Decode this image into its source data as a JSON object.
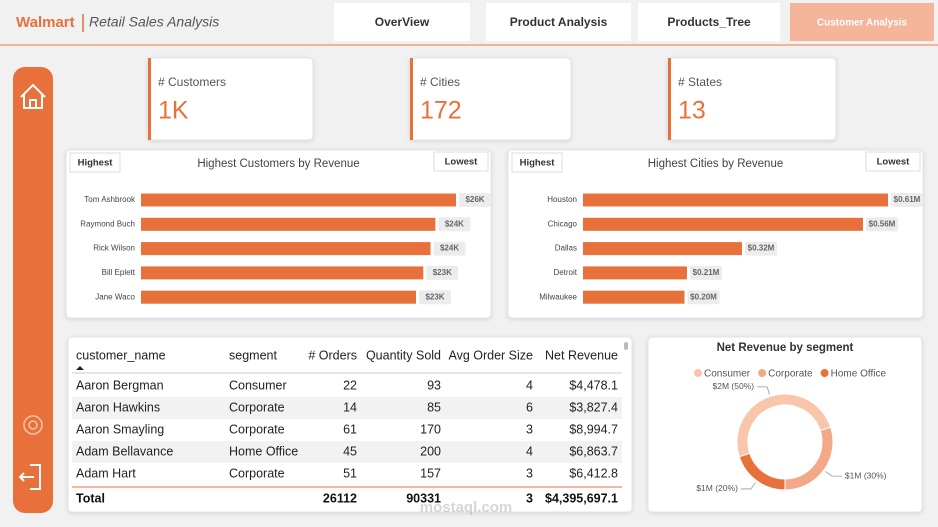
{
  "header": {
    "brand": "Walmart",
    "title": "Retail Sales Analysis"
  },
  "nav": [
    {
      "label": "OverView",
      "active": false
    },
    {
      "label": "Product Analysis",
      "active": false
    },
    {
      "label": "Products_Tree",
      "active": false
    },
    {
      "label": "Customer Analysis",
      "active": true
    }
  ],
  "kpis": [
    {
      "label": "# Customers",
      "value": "1K"
    },
    {
      "label": "# Cities",
      "value": "172"
    },
    {
      "label": "# States",
      "value": "13"
    }
  ],
  "chart_data": [
    {
      "type": "bar",
      "orientation": "horizontal",
      "title": "Highest Customers by Revenue",
      "sort_buttons": [
        "Highest",
        "Lowest"
      ],
      "categories": [
        "Tom Ashbrook",
        "Raymond Buch",
        "Rick Wilson",
        "Bill Eplett",
        "Jane Waco"
      ],
      "values": [
        26000,
        24300,
        23900,
        23300,
        22700
      ],
      "value_labels": [
        "$26K",
        "$24K",
        "$24K",
        "$23K",
        "$23K"
      ],
      "color": "#e8703a"
    },
    {
      "type": "bar",
      "orientation": "horizontal",
      "title": "Highest Cities by Revenue",
      "sort_buttons": [
        "Highest",
        "Lowest"
      ],
      "categories": [
        "Houston",
        "Chicago",
        "Dallas",
        "Detroit",
        "Milwaukee"
      ],
      "values": [
        610000,
        560000,
        318000,
        208000,
        203000
      ],
      "value_labels": [
        "$0.61M",
        "$0.56M",
        "$0.32M",
        "$0.21M",
        "$0.20M"
      ],
      "color": "#e8703a"
    },
    {
      "type": "pie",
      "title": "Net Revenue by segment",
      "categories": [
        "Consumer",
        "Corporate",
        "Home Office"
      ],
      "values": [
        2200000,
        1320000,
        880000
      ],
      "value_labels": [
        "$2M (50%)",
        "$1M (30%)",
        "$1M (20%)"
      ],
      "colors": [
        "#f7c6ab",
        "#f3a988",
        "#e8703a"
      ]
    }
  ],
  "table": {
    "columns": [
      "customer_name",
      "segment",
      "# Orders",
      "Quantity Sold",
      "Avg Order Size",
      "Net Revenue"
    ],
    "rows": [
      [
        "Aaron Bergman",
        "Consumer",
        22,
        93,
        4,
        "$4,478.1"
      ],
      [
        "Aaron Hawkins",
        "Corporate",
        14,
        85,
        6,
        "$3,827.4"
      ],
      [
        "Aaron Smayling",
        "Corporate",
        61,
        170,
        3,
        "$8,994.7"
      ],
      [
        "Adam Bellavance",
        "Home Office",
        45,
        200,
        4,
        "$6,863.7"
      ],
      [
        "Adam Hart",
        "Corporate",
        51,
        157,
        3,
        "$6,412.8"
      ]
    ],
    "total": {
      "label": "Total",
      "orders": 26112,
      "quantity": 90331,
      "avg": 3,
      "revenue": "$4,395,697.1"
    }
  },
  "watermark": "mostaql.com"
}
